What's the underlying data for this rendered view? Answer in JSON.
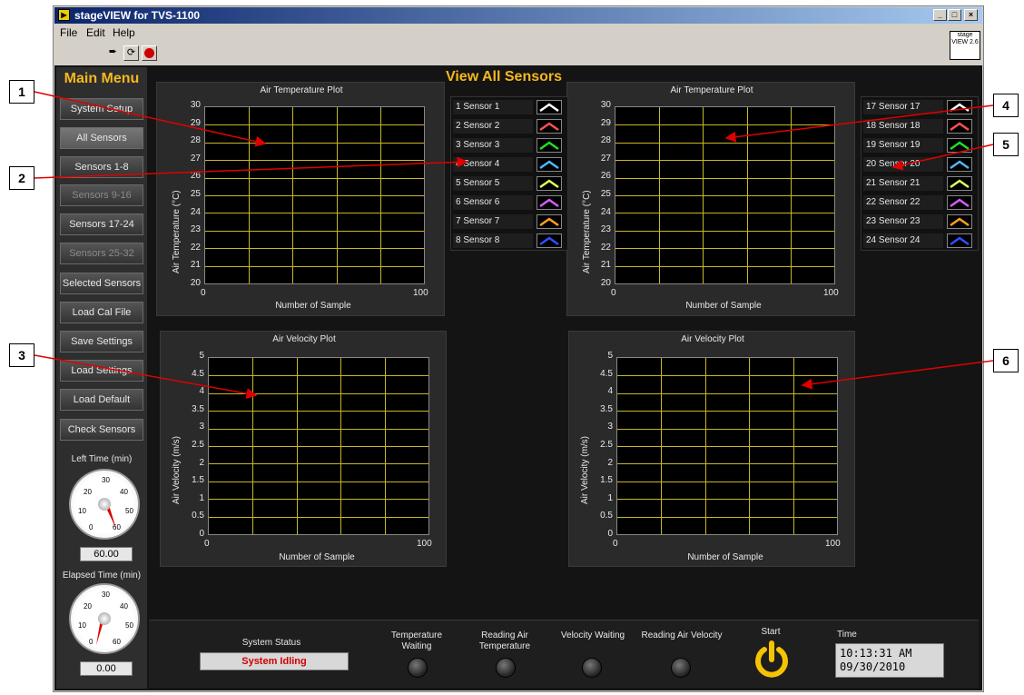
{
  "window": {
    "title": "stageVIEW for TVS-1100",
    "logo_text": "stage VIEW 2.6"
  },
  "menu": {
    "file": "File",
    "edit": "Edit",
    "help": "Help"
  },
  "sidebar": {
    "title": "Main Menu",
    "buttons": [
      "System Setup",
      "All Sensors",
      "Sensors 1-8",
      "Sensors 9-16",
      "Sensors 17-24",
      "Sensors 25-32",
      "Selected Sensors",
      "Load Cal File",
      "Save Settings",
      "Load Settings",
      "Load Default",
      "Check Sensors"
    ],
    "left_time_label": "Left Time (min)",
    "left_time_value": "60.00",
    "elapsed_time_label": "Elapsed Time (min)",
    "elapsed_time_value": "0.00",
    "dial_ticks": [
      "0",
      "10",
      "20",
      "30",
      "40",
      "50",
      "60"
    ]
  },
  "view_title": "View All Sensors",
  "plots": {
    "temp_left": {
      "title": "Air Temperature Plot",
      "ylabel": "Air Temperature (°C)",
      "xlabel": "Number of Sample",
      "yticks": [
        "30",
        "29",
        "28",
        "27",
        "26",
        "25",
        "24",
        "23",
        "22",
        "21",
        "20"
      ],
      "xticks": [
        "0",
        "100"
      ]
    },
    "temp_right": {
      "title": "Air Temperature Plot",
      "ylabel": "Air Temperature (°C)",
      "xlabel": "Number of Sample",
      "yticks": [
        "30",
        "29",
        "28",
        "27",
        "26",
        "25",
        "24",
        "23",
        "22",
        "21",
        "20"
      ],
      "xticks": [
        "0",
        "100"
      ]
    },
    "vel_left": {
      "title": "Air Velocity Plot",
      "ylabel": "Air Velocity (m/s)",
      "xlabel": "Number of Sample",
      "yticks": [
        "5",
        "4.5",
        "4",
        "3.5",
        "3",
        "2.5",
        "2",
        "1.5",
        "1",
        "0.5",
        "0"
      ],
      "xticks": [
        "0",
        "100"
      ]
    },
    "vel_right": {
      "title": "Air Velocity Plot",
      "ylabel": "Air Velocity (m/s)",
      "xlabel": "Number of Sample",
      "yticks": [
        "5",
        "4.5",
        "4",
        "3.5",
        "3",
        "2.5",
        "2",
        "1.5",
        "1",
        "0.5",
        "0"
      ],
      "xticks": [
        "0",
        "100"
      ]
    }
  },
  "legend_left": [
    {
      "label": "1 Sensor 1",
      "color": "#ffffff"
    },
    {
      "label": "2 Sensor 2",
      "color": "#ff5050"
    },
    {
      "label": "3 Sensor 3",
      "color": "#20e020"
    },
    {
      "label": "4 Sensor 4",
      "color": "#50b8ff"
    },
    {
      "label": "5 Sensor 5",
      "color": "#e0ff60"
    },
    {
      "label": "6 Sensor 6",
      "color": "#d060ff"
    },
    {
      "label": "7 Sensor 7",
      "color": "#ffa020"
    },
    {
      "label": "8 Sensor 8",
      "color": "#3050ff"
    }
  ],
  "legend_right": [
    {
      "label": "17 Sensor 17",
      "color": "#ffffff"
    },
    {
      "label": "18 Sensor 18",
      "color": "#ff5050"
    },
    {
      "label": "19 Sensor 19",
      "color": "#20e020"
    },
    {
      "label": "20 Sensor 20",
      "color": "#50b8ff"
    },
    {
      "label": "21 Sensor 21",
      "color": "#e0ff60"
    },
    {
      "label": "22 Sensor 22",
      "color": "#d060ff"
    },
    {
      "label": "23 Sensor 23",
      "color": "#ffa020"
    },
    {
      "label": "24 Sensor 24",
      "color": "#3050ff"
    }
  ],
  "bottom": {
    "system_status_label": "System Status",
    "system_status_value": "System Idling",
    "temp_waiting": "Temperature Waiting",
    "reading_temp": "Reading Air Temperature",
    "vel_waiting": "Velocity Waiting",
    "reading_vel": "Reading Air Velocity",
    "start_label": "Start",
    "time_label": "Time",
    "time_value": "10:13:31 AM",
    "date_value": "09/30/2010"
  },
  "callouts": [
    "1",
    "2",
    "3",
    "4",
    "5",
    "6"
  ],
  "colors": {
    "accent": "#f5b81f",
    "grid": "#c9b62a",
    "status": "#d00000",
    "arrow": "#e00000"
  }
}
